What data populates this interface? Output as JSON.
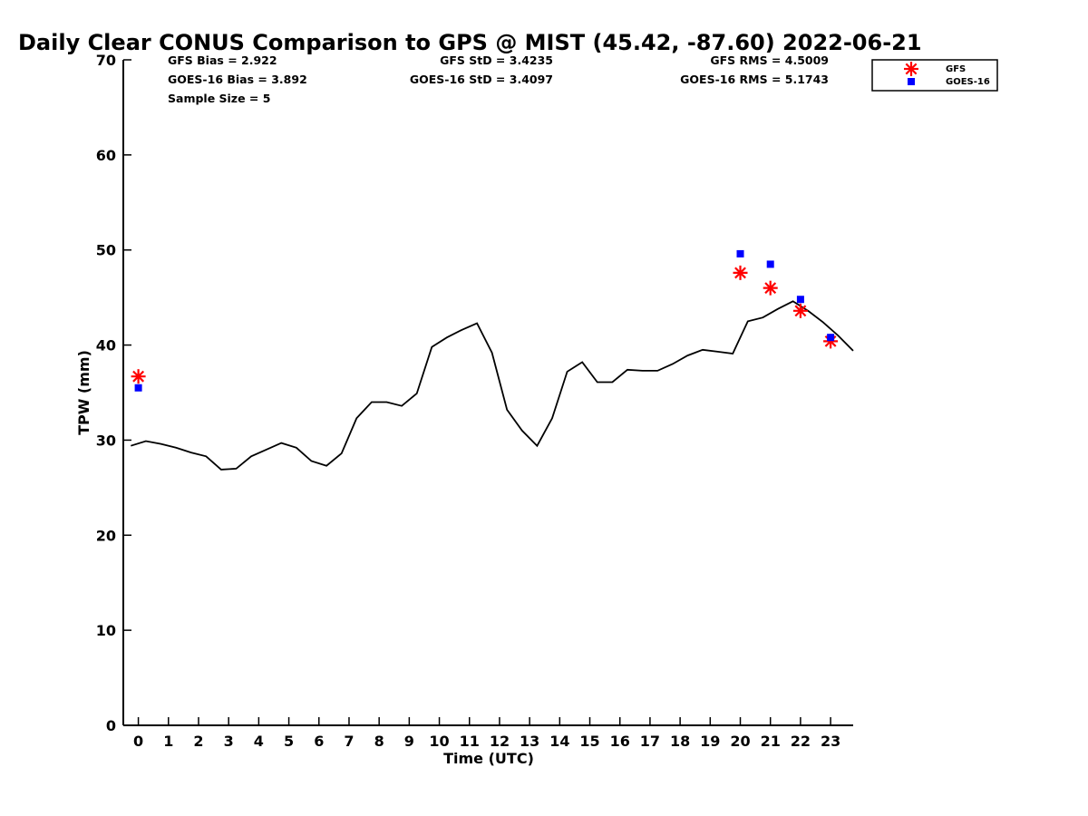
{
  "chart_data": {
    "type": "line",
    "title": "Daily Clear CONUS Comparison to GPS @ MIST (45.42, -87.60) 2022-06-21",
    "xlabel": "Time (UTC)",
    "ylabel": "TPW (mm)",
    "xlim": [
      -0.5,
      23.75
    ],
    "ylim": [
      0,
      70
    ],
    "xticks": [
      "0",
      "1",
      "2",
      "3",
      "4",
      "5",
      "6",
      "7",
      "8",
      "9",
      "10",
      "11",
      "12",
      "13",
      "14",
      "15",
      "16",
      "17",
      "18",
      "19",
      "20",
      "21",
      "22",
      "23"
    ],
    "yticks": [
      "0",
      "10",
      "20",
      "30",
      "40",
      "50",
      "60",
      "70"
    ],
    "grid": false,
    "legend_position": "top-right",
    "stats": {
      "gfs_bias": "GFS Bias = 2.922",
      "goes_bias": "GOES-16 Bias = 3.892",
      "sample_size": "Sample Size = 5",
      "gfs_std": "GFS StD = 3.4235",
      "goes_std": "GOES-16 StD = 3.4097",
      "gfs_rms": "GFS RMS = 4.5009",
      "goes_rms": "GOES-16 RMS = 5.1743"
    },
    "series": [
      {
        "kind": "line",
        "color": "#000000",
        "x": [
          -0.25,
          0.25,
          0.75,
          1.25,
          1.75,
          2.25,
          2.75,
          3.25,
          3.75,
          4.25,
          4.75,
          5.25,
          5.75,
          6.25,
          6.75,
          7.25,
          7.75,
          8.25,
          8.75,
          9.25,
          9.75,
          10.25,
          10.75,
          11.25,
          11.75,
          12.25,
          12.75,
          13.25,
          13.75,
          14.25,
          14.75,
          15.25,
          15.75,
          16.25,
          16.75,
          17.25,
          17.75,
          18.25,
          18.75,
          19.25,
          19.75,
          20.25,
          20.75,
          21.25,
          21.75,
          22.25,
          22.75,
          23.25,
          23.75
        ],
        "y": [
          29.4,
          29.9,
          29.6,
          29.2,
          28.7,
          28.3,
          26.9,
          27.0,
          28.3,
          29.0,
          29.7,
          29.2,
          27.8,
          27.3,
          28.6,
          32.3,
          34.0,
          34.0,
          33.6,
          34.9,
          39.8,
          40.8,
          41.6,
          42.3,
          39.2,
          33.2,
          31.0,
          29.4,
          32.3,
          37.2,
          38.2,
          36.1,
          36.1,
          37.4,
          37.3,
          37.3,
          38.0,
          38.9,
          39.5,
          39.3,
          39.1,
          42.5,
          42.9,
          43.8,
          44.6,
          43.6,
          42.4,
          41.0,
          39.4
        ]
      },
      {
        "name": "GFS",
        "kind": "star",
        "color": "#ff0000",
        "x": [
          0,
          20,
          21,
          22,
          23
        ],
        "y": [
          36.7,
          47.6,
          46.0,
          43.6,
          40.4
        ]
      },
      {
        "name": "GOES-16",
        "kind": "square",
        "color": "#0000ff",
        "x": [
          0,
          20,
          21,
          22,
          23
        ],
        "y": [
          35.5,
          49.6,
          48.5,
          44.8,
          40.8
        ]
      }
    ]
  }
}
